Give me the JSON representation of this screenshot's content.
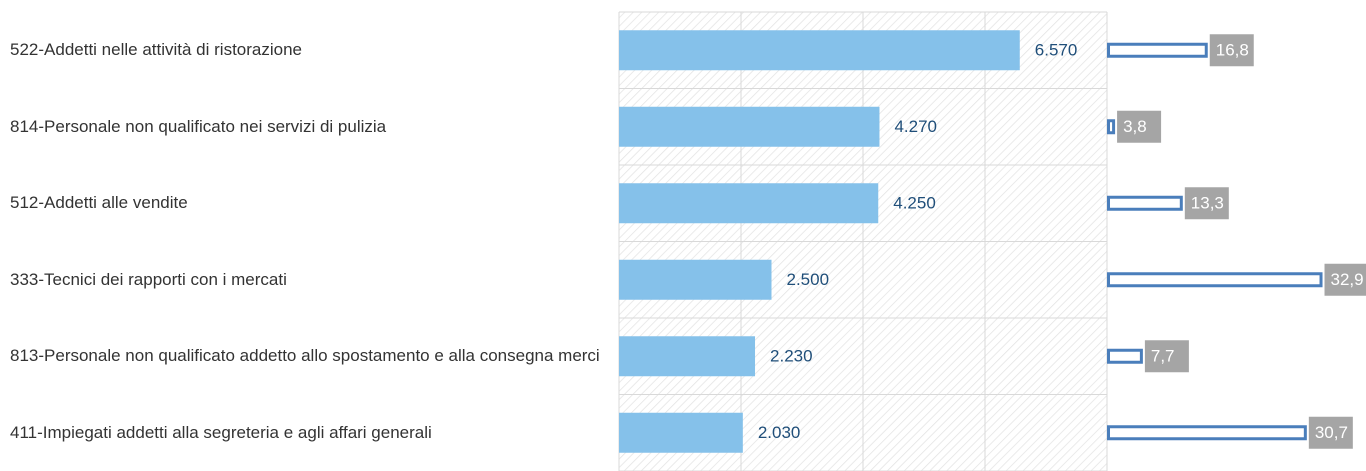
{
  "chart_data": {
    "type": "bar",
    "categories": [
      "522-Addetti nelle attività di ristorazione",
      "814-Personale non qualificato nei servizi di pulizia",
      "512-Addetti alle vendite",
      "333-Tecnici dei rapporti con i mercati",
      "813-Personale non qualificato addetto allo spostamento e alla consegna merci",
      "411-Impiegati addetti alla segreteria e agli affari generali"
    ],
    "series": [
      {
        "color": "#85c1ea",
        "values": [
          6570,
          4270,
          4250,
          2500,
          2230,
          2030
        ],
        "value_labels": [
          "6.570",
          "4.270",
          "4.250",
          "2.500",
          "2.230",
          "2.030"
        ]
      },
      {
        "color": "#4a7ebb",
        "axis": "x2",
        "values": [
          16.8,
          3.8,
          13.3,
          32.9,
          7.7,
          30.7
        ],
        "value_labels": [
          "16,8",
          "3,8",
          "13,3",
          "32,9",
          "7,7",
          "30,7"
        ]
      }
    ],
    "xlim": [
      0,
      8000
    ],
    "xticks": [
      0,
      2000,
      4000,
      6000,
      8000
    ],
    "x2lim": [
      0,
      39
    ],
    "grid": true
  }
}
